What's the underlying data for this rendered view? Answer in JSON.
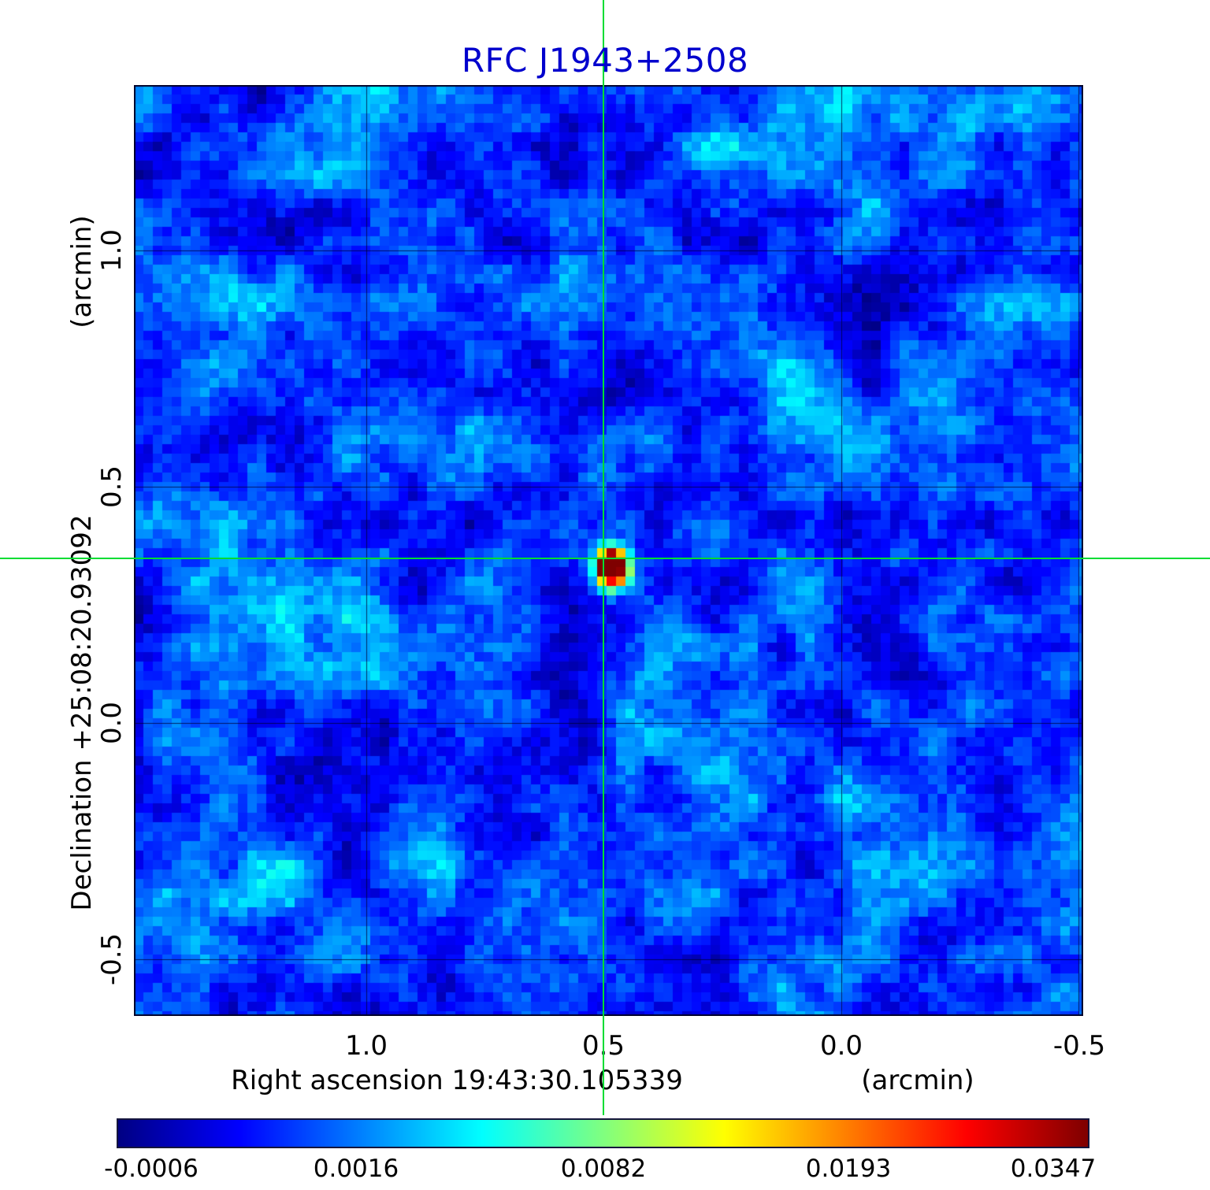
{
  "title": "RFC J1943+2508",
  "colors": {
    "title": "#0000cd",
    "crosshair": "#00dd33",
    "grid_line": "rgba(0,0,50,0.75)",
    "frame": "#000028"
  },
  "axes": {
    "y_unit": "(arcmin)",
    "y_label": "Declination  +25:08:20.93092",
    "x_label": "Right ascension  19:43:30.105339",
    "x_unit": "(arcmin)",
    "x_ticks": [
      "1.0",
      "0.5",
      "0.0",
      "-0.5"
    ],
    "y_ticks": [
      "1.0",
      "0.5",
      "0.0",
      "-0.5"
    ]
  },
  "colorbar": {
    "ticks": [
      "-0.0006",
      "0.0016",
      "0.0082",
      "0.0193",
      "0.0347"
    ],
    "tick_positions": [
      0.036,
      0.246,
      0.5,
      0.752,
      0.963
    ]
  },
  "chart_data": {
    "type": "heatmap",
    "title": "RFC J1943+2508",
    "xlabel": "Right ascension 19:43:30.105339 (arcmin)",
    "ylabel": "Declination +25:08:20.93092 (arcmin)",
    "x_range": [
      1.49,
      -0.51
    ],
    "y_range": [
      1.35,
      -0.62
    ],
    "x_tick_values": [
      1.0,
      0.5,
      0.0,
      -0.5
    ],
    "y_tick_values": [
      1.0,
      0.5,
      0.0,
      -0.5
    ],
    "grid": true,
    "crosshair": {
      "x_arcmin": 0.5,
      "y_arcmin": 0.348,
      "color": "#00dd33"
    },
    "source": {
      "x_arcmin": 0.5,
      "y_arcmin": 0.348,
      "peak_value": 0.0347
    },
    "intensity_scale": {
      "min": -0.0006,
      "max": 0.0347,
      "ticks": [
        -0.0006,
        0.0016,
        0.0082,
        0.0193,
        0.0347
      ]
    },
    "colormap_stops": [
      [
        0.0,
        "#000083"
      ],
      [
        0.125,
        "#0000ff"
      ],
      [
        0.375,
        "#00ffff"
      ],
      [
        0.625,
        "#ffff00"
      ],
      [
        0.875,
        "#ff0000"
      ],
      [
        1.0,
        "#7f0000"
      ]
    ]
  }
}
